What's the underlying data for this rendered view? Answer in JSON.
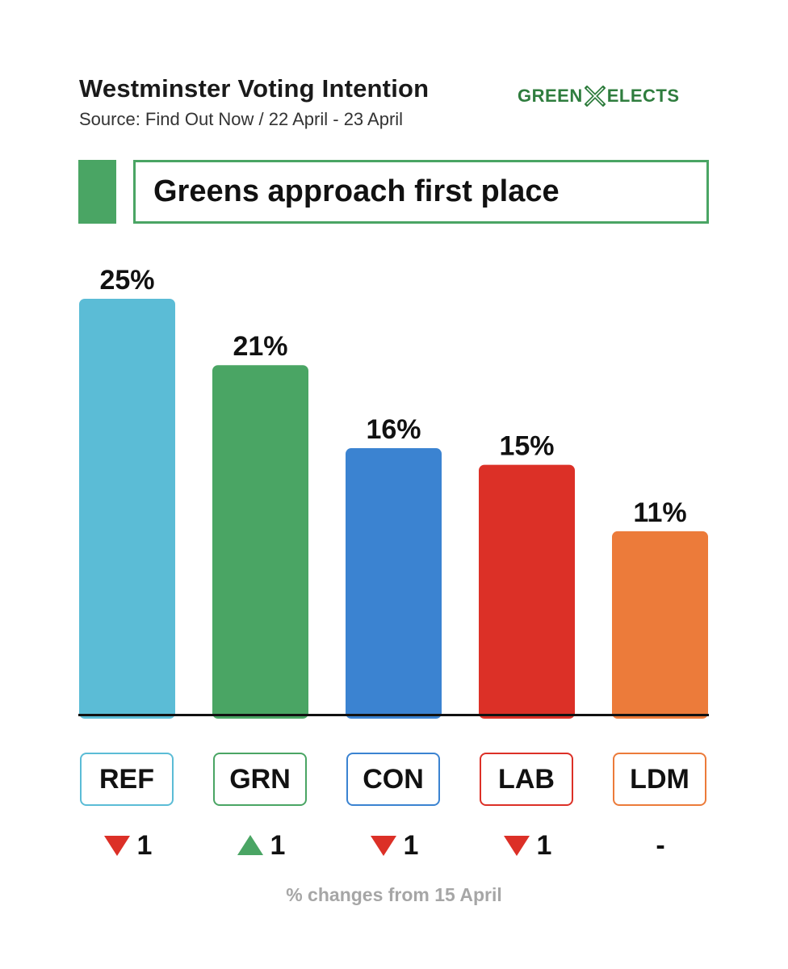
{
  "header": {
    "title": "Westminster Voting Intention",
    "subtitle": "Source: Find Out Now / 22 April - 23 April",
    "logo_left": "GREEN",
    "logo_right": "ELECTS",
    "headline": "Greens approach first place",
    "accent_color": "#4aa564"
  },
  "chart_data": {
    "type": "bar",
    "categories": [
      "REF",
      "GRN",
      "CON",
      "LAB",
      "LDM"
    ],
    "values": [
      25,
      21,
      16,
      15,
      11
    ],
    "value_labels": [
      "25%",
      "21%",
      "16%",
      "15%",
      "11%"
    ],
    "colors": [
      "#5bbcd6",
      "#4aa564",
      "#3b83d1",
      "#dc3027",
      "#ec7b3a"
    ],
    "ylim": [
      0,
      25
    ],
    "grid": false,
    "legend": "none"
  },
  "changes": [
    {
      "direction": "down",
      "value": "1"
    },
    {
      "direction": "up",
      "value": "1"
    },
    {
      "direction": "down",
      "value": "1"
    },
    {
      "direction": "down",
      "value": "1"
    },
    {
      "direction": "none",
      "value": "-"
    }
  ],
  "change_colors": {
    "down": "#dc3027",
    "up": "#4aa564"
  },
  "footnote": "% changes from 15 April"
}
